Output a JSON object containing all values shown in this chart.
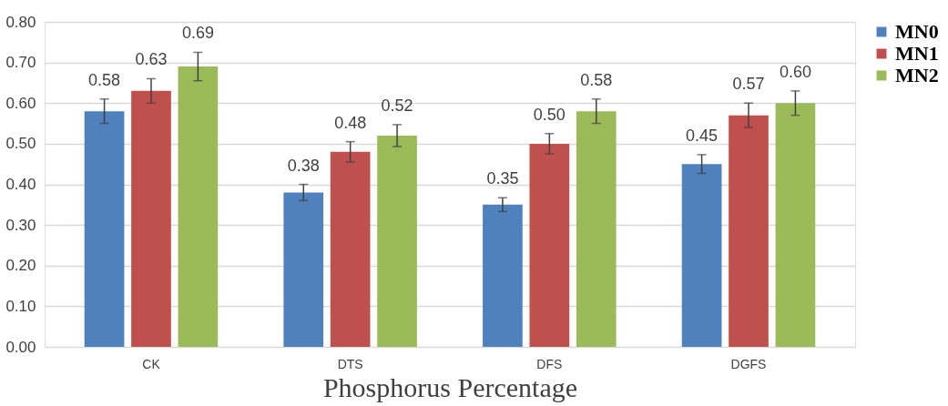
{
  "chart_data": {
    "type": "bar",
    "xlabel": "Phosphorus Percentage",
    "categories": [
      "CK",
      "DTS",
      "DFS",
      "DGFS"
    ],
    "series": [
      {
        "name": "MN0",
        "color": "#4f81bd",
        "values": [
          0.58,
          0.38,
          0.35,
          0.45
        ],
        "errors": [
          0.03,
          0.02,
          0.017,
          0.023
        ],
        "value_labels": [
          "0.58",
          "0.38",
          "0.35",
          "0.45"
        ]
      },
      {
        "name": "MN1",
        "color": "#c0504d",
        "values": [
          0.63,
          0.48,
          0.5,
          0.57
        ],
        "errors": [
          0.03,
          0.025,
          0.025,
          0.03
        ],
        "value_labels": [
          "0.63",
          "0.48",
          "0.50",
          "0.57"
        ]
      },
      {
        "name": "MN2",
        "color": "#9bbb59",
        "values": [
          0.69,
          0.52,
          0.58,
          0.6
        ],
        "errors": [
          0.035,
          0.027,
          0.03,
          0.03
        ],
        "value_labels": [
          "0.69",
          "0.52",
          "0.58",
          "0.60"
        ]
      }
    ],
    "ylim": [
      0,
      0.8
    ],
    "yticks": [
      {
        "value": 0,
        "label": "0.00"
      },
      {
        "value": 0.1,
        "label": "0.10"
      },
      {
        "value": 0.2,
        "label": "0.20"
      },
      {
        "value": 0.3,
        "label": "0.30"
      },
      {
        "value": 0.4,
        "label": "0.40"
      },
      {
        "value": 0.5,
        "label": "0.50"
      },
      {
        "value": 0.6,
        "label": "0.60"
      },
      {
        "value": 0.7,
        "label": "0.70"
      },
      {
        "value": 0.8,
        "label": "0.80"
      }
    ],
    "grid": "y",
    "legend": "top right"
  }
}
